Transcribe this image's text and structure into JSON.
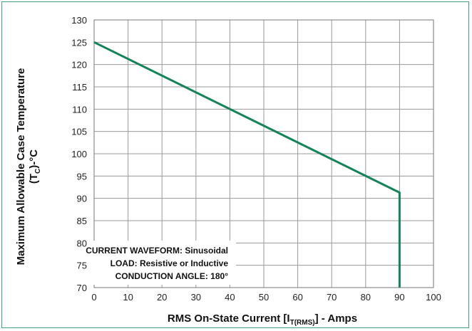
{
  "chart_data": {
    "type": "line",
    "x": [
      0,
      90,
      90
    ],
    "y": [
      125,
      91.3,
      70
    ],
    "xlim": [
      0,
      100
    ],
    "ylim": [
      70,
      130
    ],
    "x_ticks": [
      "0",
      "10",
      "20",
      "30",
      "40",
      "50",
      "60",
      "70",
      "80",
      "90",
      "100"
    ],
    "y_ticks": [
      "70",
      "75",
      "80",
      "85",
      "90",
      "95",
      "100",
      "105",
      "110",
      "115",
      "120",
      "125",
      "130"
    ],
    "xlabel": {
      "main": "RMS On-State Current [I",
      "sub": "T(RMS)",
      "end": "] - Amps"
    },
    "ylabel": {
      "line1": "Maximum Allowable Case Temperature",
      "line2_pre": "(T",
      "line2_sub": "C",
      "line2_post": ")-°C"
    },
    "annotation": {
      "line1_label": "CURRENT WAVEFORM:",
      "line1_value": "Sinusoidal",
      "line2_label": "LOAD:",
      "line2_value": "Resistive or Inductive",
      "line3_label": "CONDUCTION ANGLE:",
      "line3_value": "180°"
    },
    "grid": true,
    "colors": {
      "line": "#13845a",
      "grid": "#9a9a9a",
      "frame": "#3aa37f"
    }
  }
}
